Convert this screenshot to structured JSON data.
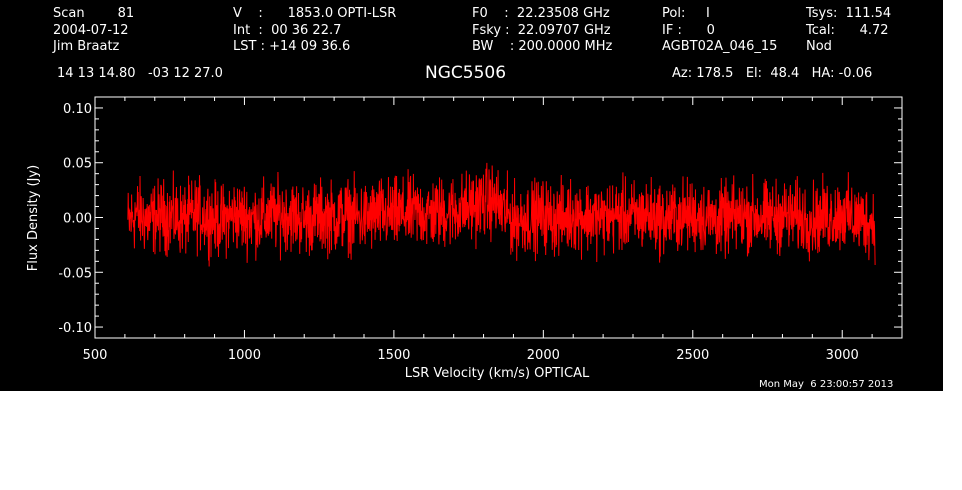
{
  "header": {
    "col1": [
      "Scan        81",
      "2004-07-12",
      "Jim Braatz"
    ],
    "col2": [
      "V    :      1853.0 OPTI-LSR",
      "Int  :  00 36 22.7",
      "LST : +14 09 36.6"
    ],
    "col3": [
      "F0    :  22.23508 GHz",
      "Fsky :  22.09707 GHz",
      "BW    : 200.0000 MHz"
    ],
    "col4": [
      "Pol:     I",
      "IF :      0",
      "AGBT02A_046_15"
    ],
    "col5": [
      "Tsys:  111.54",
      "Tcal:      4.72",
      "Nod"
    ],
    "coords": "14 13 14.80   -03 12 27.0",
    "source": "NGC5506",
    "azel": "Az: 178.5   El:  48.4   HA: -0.06",
    "timestamp": "Mon May  6 23:00:57 2013"
  },
  "chart_data": {
    "type": "line",
    "xlabel": "LSR Velocity (km/s) OPTICAL",
    "ylabel": "Flux Density (Jy)",
    "xlim": [
      500,
      3200
    ],
    "ylim": [
      -0.11,
      0.11
    ],
    "xticks": [
      500,
      1000,
      1500,
      2000,
      2500,
      3000
    ],
    "xtick_labels": [
      "500",
      "1000",
      "1500",
      "2000",
      "2500",
      "3000"
    ],
    "yticks": [
      0.1,
      0.05,
      0.0,
      -0.05,
      -0.1
    ],
    "ytick_labels": [
      "0.10",
      "0.05",
      "0.00",
      "-0.05",
      "-0.10"
    ],
    "series": [
      {
        "color": "#ff0000",
        "x": [
          610,
          640,
          680,
          720,
          760,
          800,
          840,
          880,
          920,
          960,
          1000,
          1050,
          1100,
          1150,
          1200,
          1250,
          1300,
          1350,
          1400,
          1450,
          1500,
          1550,
          1580,
          1610,
          1650,
          1700,
          1750,
          1780,
          1800,
          1830,
          1850,
          1870,
          1900,
          1950,
          2000,
          2050,
          2100,
          2150,
          2200,
          2250,
          2300,
          2350,
          2400,
          2450,
          2500,
          2550,
          2600,
          2650,
          2700,
          2750,
          2800,
          2850,
          2900,
          2950,
          3000,
          3050,
          3110
        ],
        "y": [
          -0.005,
          0.004,
          -0.003,
          0.002,
          0.0,
          -0.002,
          0.003,
          0.001,
          -0.004,
          0.002,
          0.0,
          -0.001,
          0.002,
          0.003,
          -0.002,
          0.001,
          0.0,
          0.002,
          -0.001,
          0.003,
          0.002,
          0.004,
          0.005,
          0.003,
          0.004,
          0.006,
          0.009,
          0.012,
          0.014,
          0.016,
          0.01,
          0.005,
          -0.003,
          0.0,
          0.002,
          -0.002,
          0.003,
          0.001,
          -0.001,
          0.002,
          0.0,
          0.003,
          -0.002,
          0.001,
          0.002,
          0.0,
          -0.003,
          0.001,
          0.002,
          -0.001,
          0.002,
          0.0,
          -0.002,
          0.001,
          0.003,
          -0.002,
          -0.004
        ]
      }
    ],
    "noise_amplitude": 0.02
  }
}
